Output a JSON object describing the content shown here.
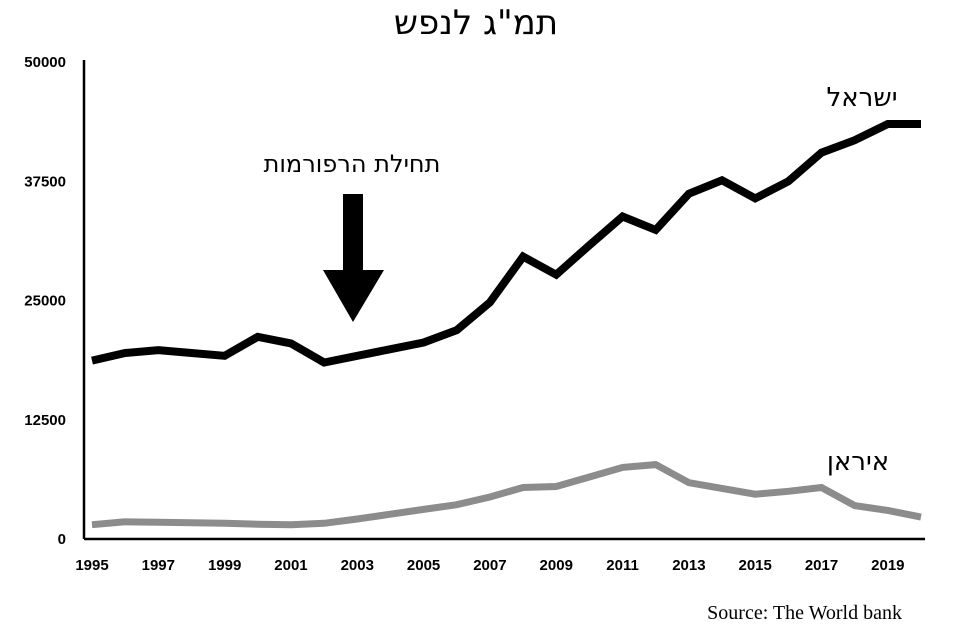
{
  "chart_data": {
    "type": "line",
    "title": "תמ\"ג לנפש",
    "x": [
      1995,
      1996,
      1997,
      1998,
      1999,
      2000,
      2001,
      2002,
      2003,
      2004,
      2005,
      2006,
      2007,
      2008,
      2009,
      2010,
      2011,
      2012,
      2013,
      2014,
      2015,
      2016,
      2017,
      2018,
      2019,
      2020
    ],
    "x_tick_labels": [
      "1995",
      "1997",
      "1999",
      "2001",
      "2003",
      "2005",
      "2007",
      "2009",
      "2011",
      "2013",
      "2015",
      "2017",
      "2019"
    ],
    "y_tick_labels": [
      "0",
      "12500",
      "25000",
      "37500",
      "50000"
    ],
    "ylim": [
      0,
      50000
    ],
    "series": [
      {
        "name": "ישראל",
        "color": "#000000",
        "values": [
          18700,
          19500,
          19800,
          19500,
          19200,
          21200,
          20500,
          18500,
          19200,
          19900,
          20600,
          21900,
          24800,
          29600,
          27700,
          30800,
          33800,
          32400,
          36200,
          37600,
          35700,
          37500,
          40500,
          41800,
          43500,
          43500
        ]
      },
      {
        "name": "איראן",
        "color": "#8c8c8c",
        "values": [
          1500,
          1800,
          1750,
          1700,
          1650,
          1550,
          1500,
          1650,
          2100,
          2600,
          3100,
          3600,
          4400,
          5400,
          5500,
          6500,
          7500,
          7800,
          5900,
          5300,
          4700,
          5000,
          5400,
          3500,
          3000,
          2300
        ]
      }
    ],
    "annotation": {
      "text": "תחילת הרפורמות",
      "x": 2003,
      "arrow": "down"
    },
    "source": "Source: The World bank",
    "grid": false,
    "legend": "inline labels"
  }
}
